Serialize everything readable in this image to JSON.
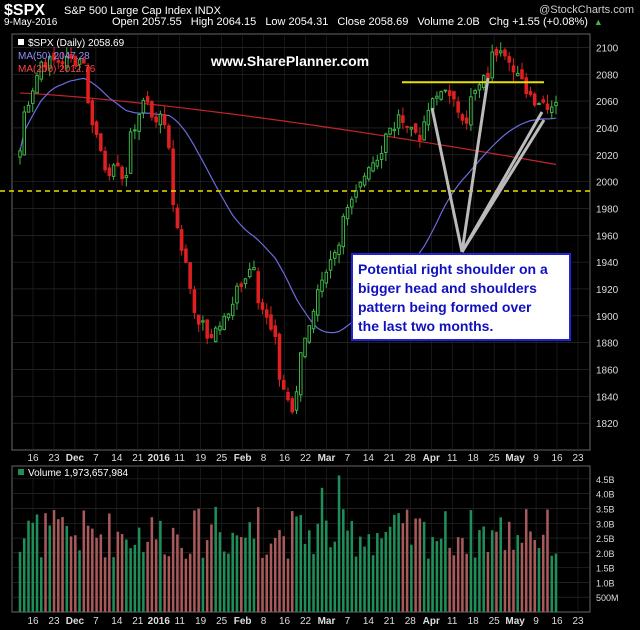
{
  "header": {
    "symbol": "$SPX",
    "name": "S&P 500 Large Cap Index  INDX",
    "brand": "@StockCharts.com",
    "date": "9-May-2016",
    "open": "Open 2057.55",
    "high": "High 2064.15",
    "low": "Low 2054.31",
    "close": "Close 2058.69",
    "volume": "Volume 2.0B",
    "chg": "Chg +1.55 (+0.08%)",
    "chg_arrow": "▲"
  },
  "legend": {
    "price": "$SPX (Daily) 2058.69",
    "ma50": "MA(50) 2047.28",
    "ma200": "MA(200) 2012.76",
    "volume": "Volume 1,973,657,984"
  },
  "watermark": "www.SharePlanner.com",
  "annotation": {
    "line1": "Potential right shoulder on a",
    "line2": "bigger head and shoulders",
    "line3": "pattern being formed over",
    "line4": "the last two months."
  },
  "colors": {
    "up": "#3fb54a",
    "down": "#e02020",
    "ma50": "#6b6bdc",
    "ma200": "#c0252a",
    "support_line": "#e8e000",
    "volume_up": "#1f8f5a",
    "volume_down": "#a85a5a",
    "callout_border": "#2222dd",
    "callout_text": "#1010c0"
  },
  "chart_data": {
    "type": "candlestick",
    "price_axis": {
      "ylim": [
        1800,
        2110
      ],
      "ticks": [
        1820,
        1840,
        1860,
        1880,
        1900,
        1920,
        1940,
        1960,
        1980,
        2000,
        2020,
        2040,
        2060,
        2080,
        2100
      ]
    },
    "volume_axis": {
      "ylim": [
        0,
        4.8
      ],
      "ticks": [
        "4.5B",
        "4.0B",
        "3.5B",
        "3.0B",
        "2.5B",
        "2.0B",
        "1.5B",
        "1.0B",
        "500M"
      ],
      "tick_values": [
        4.5,
        4.0,
        3.5,
        3.0,
        2.5,
        2.0,
        1.5,
        1.0,
        0.5
      ]
    },
    "x_ticks": [
      "16",
      "23",
      "Dec",
      "7",
      "14",
      "21",
      "2016",
      "11",
      "19",
      "25",
      "Feb",
      "8",
      "16",
      "22",
      "Mar",
      "7",
      "14",
      "21",
      "28",
      "Apr",
      "11",
      "18",
      "25",
      "May",
      "9",
      "16",
      "23"
    ],
    "horizontal_lines": [
      {
        "name": "neckline",
        "value": 1993,
        "style": "dashed"
      },
      {
        "name": "resistance",
        "value": 2074,
        "style": "solid",
        "x_start": "2016-03-29",
        "x_end": "2016-05-09"
      }
    ],
    "close_approx": [
      {
        "d": "2015-11-13",
        "c": 2023
      },
      {
        "d": "2015-11-20",
        "c": 2089
      },
      {
        "d": "2015-11-27",
        "c": 2090
      },
      {
        "d": "2015-12-04",
        "c": 2091
      },
      {
        "d": "2015-12-11",
        "c": 2012
      },
      {
        "d": "2015-12-18",
        "c": 2005
      },
      {
        "d": "2015-12-24",
        "c": 2060
      },
      {
        "d": "2015-12-31",
        "c": 2043
      },
      {
        "d": "2016-01-08",
        "c": 1922
      },
      {
        "d": "2016-01-15",
        "c": 1880
      },
      {
        "d": "2016-01-22",
        "c": 1906
      },
      {
        "d": "2016-01-29",
        "c": 1940
      },
      {
        "d": "2016-02-05",
        "c": 1880
      },
      {
        "d": "2016-02-11",
        "c": 1829
      },
      {
        "d": "2016-02-19",
        "c": 1917
      },
      {
        "d": "2016-02-26",
        "c": 1948
      },
      {
        "d": "2016-03-04",
        "c": 1999
      },
      {
        "d": "2016-03-11",
        "c": 2022
      },
      {
        "d": "2016-03-18",
        "c": 2049
      },
      {
        "d": "2016-03-24",
        "c": 2035
      },
      {
        "d": "2016-04-01",
        "c": 2072
      },
      {
        "d": "2016-04-08",
        "c": 2047
      },
      {
        "d": "2016-04-15",
        "c": 2080
      },
      {
        "d": "2016-04-20",
        "c": 2102
      },
      {
        "d": "2016-04-29",
        "c": 2065
      },
      {
        "d": "2016-05-06",
        "c": 2057
      },
      {
        "d": "2016-05-09",
        "c": 2059
      }
    ],
    "ma50_end": 2047.28,
    "ma200_end": 2012.76,
    "last_volume": 1973657984
  }
}
